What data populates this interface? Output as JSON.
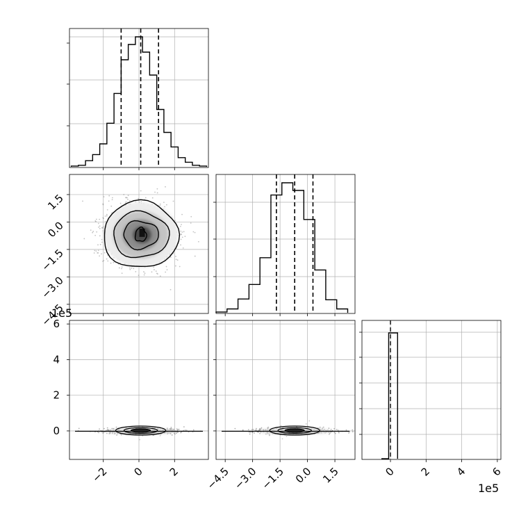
{
  "figure": {
    "title": "",
    "offset_label": "1e5"
  },
  "chart_data": [
    {
      "type": "bar",
      "panel": "marginal-x1",
      "title": "",
      "xlabel": "",
      "ylabel": "",
      "bin_edges": [
        -3.8,
        -3.4,
        -3.0,
        -2.6,
        -2.2,
        -1.8,
        -1.4,
        -1.0,
        -0.6,
        -0.2,
        0.2,
        0.6,
        1.0,
        1.4,
        1.8,
        2.2,
        2.6,
        3.0,
        3.4,
        3.8
      ],
      "values": [
        1,
        2,
        8,
        16,
        30,
        57,
        96,
        140,
        160,
        170,
        150,
        120,
        75,
        45,
        26,
        12,
        6,
        2,
        1
      ],
      "quantile_lines": [
        -1.0,
        0.1,
        1.1
      ],
      "xlim": [
        -3.9,
        3.9
      ],
      "grid": true
    },
    {
      "type": "bar",
      "panel": "marginal-x2",
      "title": "",
      "xlabel": "",
      "ylabel": "",
      "bin_edges": [
        -5.0,
        -4.4,
        -3.8,
        -3.2,
        -2.6,
        -2.0,
        -1.4,
        -0.8,
        -0.2,
        0.4,
        1.0,
        1.6,
        2.2
      ],
      "values": [
        1,
        5,
        18,
        37,
        72,
        154,
        170,
        160,
        122,
        56,
        17,
        5
      ],
      "quantile_lines": [
        -1.7,
        -0.7,
        0.3
      ],
      "xlim": [
        -5.0,
        2.6
      ],
      "xticks": [
        "−4.5",
        "−3.0",
        "−1.5",
        "0.0",
        "1.5"
      ],
      "grid": true
    },
    {
      "type": "bar",
      "panel": "marginal-x3",
      "title": "",
      "xlabel": "",
      "ylabel": "",
      "bin_edges": [
        -0.1,
        0.4
      ],
      "values": [
        1
      ],
      "quantile_lines": [
        0.0
      ],
      "xlim": [
        -1.6,
        6.2
      ],
      "xticks": [
        "0",
        "2",
        "4",
        "6"
      ],
      "grid": true
    },
    {
      "type": "scatter",
      "panel": "x2-vs-x1",
      "title": "",
      "xlabel": "",
      "ylabel": "",
      "x_center": 0.1,
      "y_center": -0.7,
      "contour_levels": [
        "0.5-sigma",
        "1-sigma",
        "1.5-sigma",
        "2-sigma"
      ],
      "xlim": [
        -3.9,
        3.9
      ],
      "ylim": [
        -5.0,
        2.6
      ],
      "yticks": [
        "1.5",
        "0.0",
        "−1.5",
        "−3.0",
        "−4.5"
      ],
      "grid": true
    },
    {
      "type": "scatter",
      "panel": "x3-vs-x1",
      "title": "",
      "xlabel": "",
      "ylabel": "",
      "x_center": 0.1,
      "y_center": 0.1,
      "xlim": [
        -3.9,
        3.9
      ],
      "ylim": [
        -1.6,
        6.2
      ],
      "xticks": [
        "−2",
        "0",
        "2"
      ],
      "yticks": [
        "6",
        "4",
        "2",
        "0"
      ],
      "grid": true
    },
    {
      "type": "scatter",
      "panel": "x3-vs-x2",
      "title": "",
      "xlabel": "",
      "ylabel": "",
      "x_center": -0.7,
      "y_center": 0.1,
      "xlim": [
        -5.0,
        2.6
      ],
      "ylim": [
        -1.6,
        6.2
      ],
      "grid": true
    }
  ]
}
